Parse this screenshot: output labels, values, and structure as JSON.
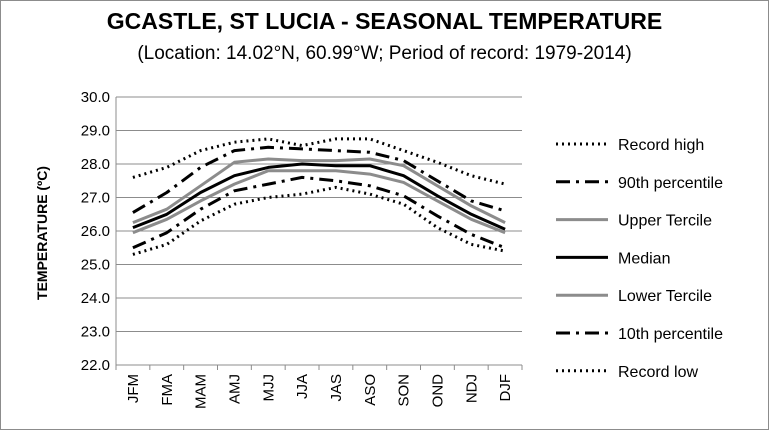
{
  "chart_data": {
    "type": "line",
    "title": "GCASTLE, ST LUCIA - SEASONAL TEMPERATURE",
    "subtitle": "(Location: 14.02°N, 60.99°W; Period of record: 1979-2014)",
    "xlabel": "",
    "ylabel": "TEMPERATURE (ºC)",
    "ylim": [
      22.0,
      30.0
    ],
    "yticks": [
      "30.0",
      "29.0",
      "28.0",
      "27.0",
      "26.0",
      "25.0",
      "24.0",
      "23.0",
      "22.0"
    ],
    "grid": true,
    "legend_position": "right",
    "categories": [
      "JFM",
      "FMA",
      "MAM",
      "AMJ",
      "MJJ",
      "JJA",
      "JAS",
      "ASO",
      "SON",
      "OND",
      "NDJ",
      "DJF"
    ],
    "series": [
      {
        "name": "Record high",
        "color": "#000000",
        "style": "dotted",
        "values": [
          27.6,
          27.9,
          28.4,
          28.65,
          28.75,
          28.55,
          28.75,
          28.75,
          28.4,
          28.05,
          27.65,
          27.4
        ]
      },
      {
        "name": "90th percentile",
        "color": "#000000",
        "style": "dashdot",
        "values": [
          26.55,
          27.15,
          27.9,
          28.4,
          28.5,
          28.45,
          28.4,
          28.35,
          28.1,
          27.5,
          26.9,
          26.6
        ]
      },
      {
        "name": "Upper Tercile",
        "color": "#8c8c8c",
        "style": "solid",
        "values": [
          26.25,
          26.65,
          27.35,
          28.05,
          28.15,
          28.1,
          28.1,
          28.15,
          27.95,
          27.35,
          26.75,
          26.25
        ]
      },
      {
        "name": "Median",
        "color": "#000000",
        "style": "solid",
        "values": [
          26.1,
          26.5,
          27.15,
          27.65,
          27.9,
          28.0,
          27.95,
          27.95,
          27.65,
          27.05,
          26.5,
          26.05
        ]
      },
      {
        "name": "Lower Tercile",
        "color": "#8c8c8c",
        "style": "solid",
        "values": [
          25.95,
          26.35,
          26.9,
          27.4,
          27.8,
          27.8,
          27.8,
          27.7,
          27.45,
          26.9,
          26.35,
          25.95
        ]
      },
      {
        "name": "10th percentile",
        "color": "#000000",
        "style": "dashdot",
        "values": [
          25.5,
          25.95,
          26.65,
          27.2,
          27.4,
          27.6,
          27.5,
          27.35,
          27.05,
          26.45,
          25.9,
          25.5
        ]
      },
      {
        "name": "Record low",
        "color": "#000000",
        "style": "dotted",
        "values": [
          25.3,
          25.6,
          26.3,
          26.8,
          27.0,
          27.1,
          27.3,
          27.1,
          26.8,
          26.1,
          25.6,
          25.4
        ]
      }
    ]
  }
}
